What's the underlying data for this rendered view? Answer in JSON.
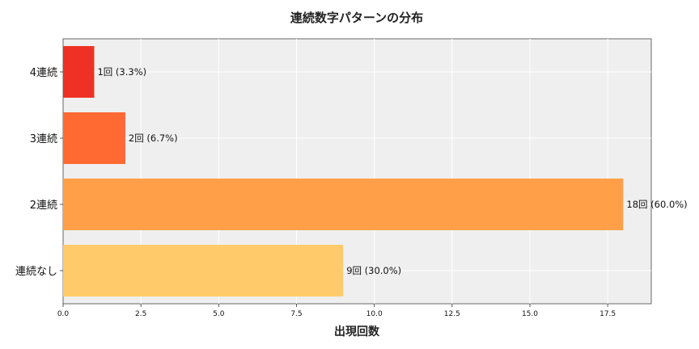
{
  "chart_data": {
    "type": "bar",
    "orientation": "horizontal",
    "title": "連続数字パターンの分布",
    "xlabel": "出現回数",
    "ylabel": "",
    "categories": [
      "4連続",
      "3連続",
      "2連続",
      "連続なし"
    ],
    "values": [
      1,
      2,
      18,
      9
    ],
    "data_labels": [
      "1回 (3.3%)",
      "2回 (6.7%)",
      "18回 (60.0%)",
      "9回 (30.0%)"
    ],
    "colors": [
      "#ee3124",
      "#ff6a33",
      "#ffa048",
      "#ffcb6a"
    ],
    "xlim": [
      0,
      18.9
    ],
    "xticks": [
      0,
      2.5,
      5,
      7.5,
      10,
      12.5,
      15,
      17.5
    ],
    "xtick_labels": [
      "0.0",
      "2.5",
      "5.0",
      "7.5",
      "10.0",
      "12.5",
      "15.0",
      "17.5"
    ],
    "grid": true,
    "background": "#efefef"
  }
}
